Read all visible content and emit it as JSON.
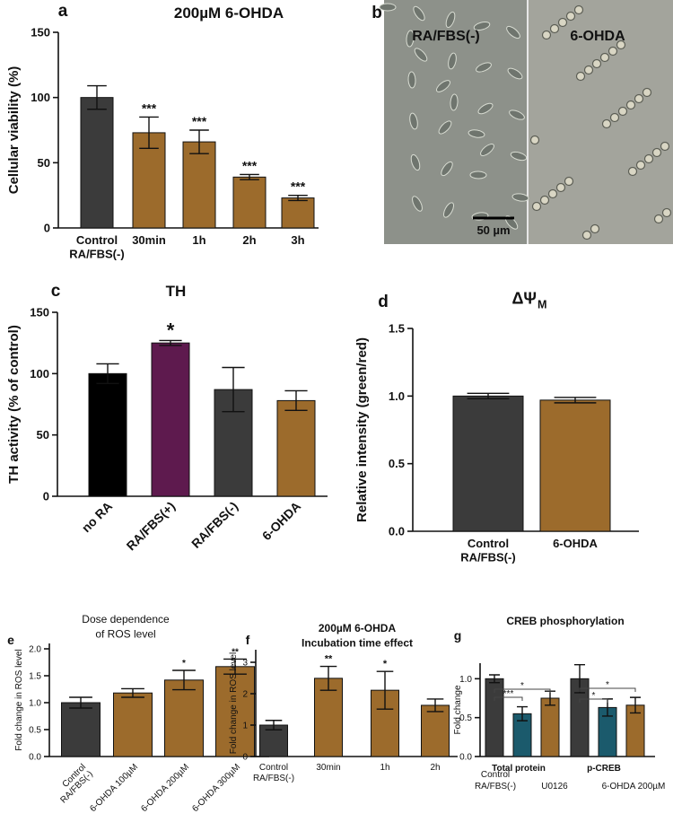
{
  "chart_data": [
    {
      "type": "bar",
      "label": "a",
      "title": "200µM 6-OHDA",
      "ylabel": "Cellular viability (%)",
      "categories": [
        "Control\nRA/FBS(-)",
        "30min",
        "1h",
        "2h",
        "3h"
      ],
      "values": [
        100,
        73,
        66,
        39,
        23
      ],
      "errors": [
        9,
        12,
        9,
        2,
        2
      ],
      "colors": [
        "#3b3b3b",
        "#9c6b2c",
        "#9c6b2c",
        "#9c6b2c",
        "#9c6b2c"
      ],
      "annotations": [
        null,
        "***",
        "***",
        "***",
        "***"
      ],
      "ylim": [
        0,
        150
      ],
      "yticks": [
        0,
        50,
        100,
        150
      ]
    },
    {
      "type": "image",
      "label": "b",
      "labels": [
        "RA/FBS(-)",
        "6-OHDA"
      ],
      "scale_bar": "50 µm"
    },
    {
      "type": "bar",
      "label": "c",
      "title": "TH",
      "ylabel": "TH activity (% of control)",
      "categories": [
        "no RA",
        "RA/FBS(+)",
        "RA/FBS(-)",
        "6-OHDA"
      ],
      "values": [
        100,
        125,
        87,
        78
      ],
      "errors": [
        8,
        2,
        18,
        8
      ],
      "colors": [
        "#000000",
        "#5e1a4e",
        "#3b3b3b",
        "#9c6b2c"
      ],
      "annotations": [
        null,
        "*",
        null,
        null
      ],
      "ylim": [
        0,
        150
      ],
      "yticks": [
        0,
        50,
        100,
        150
      ]
    },
    {
      "type": "bar",
      "label": "d",
      "title": "ΔΨ",
      "title_subscript": "M",
      "ylabel": "Relative intensity (green/red)",
      "categories": [
        "Control\nRA/FBS(-)",
        "6-OHDA"
      ],
      "values": [
        1.0,
        0.97
      ],
      "errors": [
        0.02,
        0.02
      ],
      "colors": [
        "#3b3b3b",
        "#9c6b2c"
      ],
      "ylim": [
        0,
        1.5
      ],
      "yticks": [
        {
          "value": 0,
          "label": "0.0"
        },
        0.5,
        {
          "value": 1,
          "label": "1.0"
        },
        1.5
      ]
    },
    {
      "type": "bar",
      "label": "e",
      "title": "Dose dependence\nof ROS level",
      "ylabel": "Fold change in ROS level",
      "categories": [
        "Control\nRA/FBS(-)",
        "6-OHDA 100µM",
        "6-OHDA 200µM",
        "6-OHDA 300µM"
      ],
      "values": [
        1.0,
        1.18,
        1.42,
        1.67
      ],
      "errors": [
        0.1,
        0.08,
        0.18,
        0.14
      ],
      "colors": [
        "#3b3b3b",
        "#9c6b2c",
        "#9c6b2c",
        "#9c6b2c"
      ],
      "annotations": [
        null,
        null,
        "*",
        "**"
      ],
      "ylim": [
        0,
        2.1
      ],
      "yticks": [
        {
          "value": 0,
          "label": "0.0"
        },
        0.5,
        {
          "value": 1,
          "label": "1.0"
        },
        1.5,
        {
          "value": 2,
          "label": "2.0"
        }
      ]
    },
    {
      "type": "bar",
      "label": "f",
      "title": "200µM 6-OHDA\nIncubation time effect",
      "ylabel": "Fold change in ROS level",
      "categories": [
        "Control\nRA/FBS(-)",
        "30min",
        "1h",
        "2h"
      ],
      "values": [
        1.0,
        2.49,
        2.11,
        1.63
      ],
      "errors": [
        0.15,
        0.38,
        0.6,
        0.2
      ],
      "colors": [
        "#3b3b3b",
        "#9c6b2c",
        "#9c6b2c",
        "#9c6b2c"
      ],
      "annotations": [
        null,
        "**",
        "*",
        null
      ],
      "ylim": [
        0,
        3.4
      ],
      "yticks": [
        0,
        1,
        2,
        3
      ]
    },
    {
      "type": "grouped_bar",
      "label": "g",
      "title": "CREB phosphorylation",
      "ylabel": "Fold change",
      "categories": [
        "Total protein",
        "p-CREB"
      ],
      "series": [
        {
          "name": "Control\nRA/FBS(-)",
          "color": "#3b3b3b",
          "values": [
            1.0,
            1.0
          ],
          "errors": [
            0.05,
            0.18
          ]
        },
        {
          "name": "U0126",
          "color": "#1b5a6c",
          "values": [
            0.55,
            0.63
          ],
          "errors": [
            0.09,
            0.11
          ]
        },
        {
          "name": "6-OHDA 200µM",
          "color": "#9c6b2c",
          "values": [
            0.75,
            0.66
          ],
          "errors": [
            0.09,
            0.1
          ]
        }
      ],
      "brackets": [
        "***",
        "*",
        "*",
        "*"
      ],
      "ylim": [
        0,
        1.2
      ],
      "yticks": [
        {
          "value": 0,
          "label": "0.0"
        },
        0.5,
        {
          "value": 1,
          "label": "1.0"
        }
      ]
    }
  ]
}
